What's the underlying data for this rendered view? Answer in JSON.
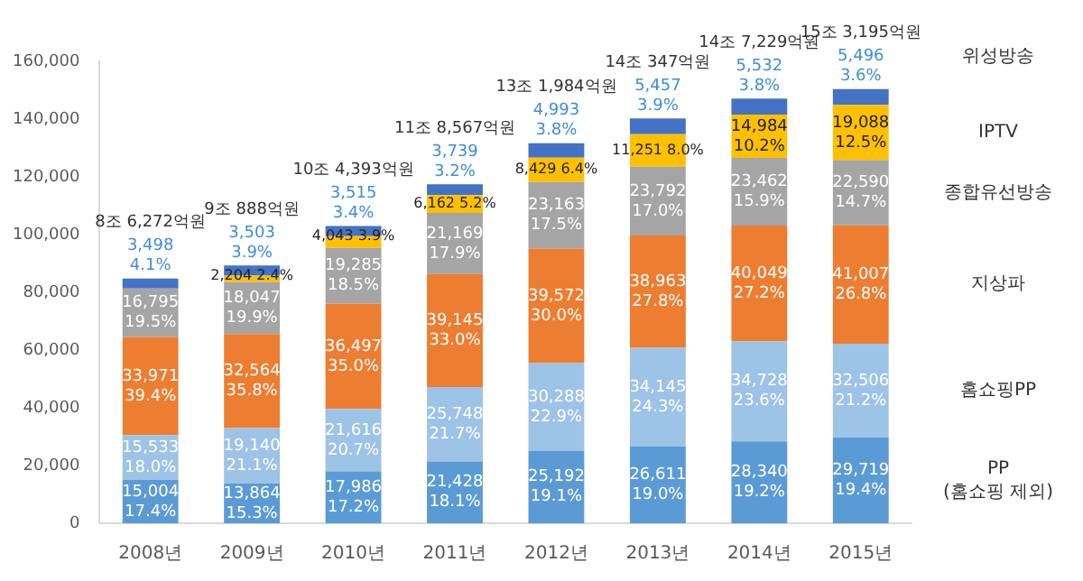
{
  "chart_data": {
    "type": "bar",
    "stacked": true,
    "categories": [
      "2008년",
      "2009년",
      "2010년",
      "2011년",
      "2012년",
      "2013년",
      "2014년",
      "2015년"
    ],
    "ylim": [
      0,
      160000
    ],
    "yticks": [
      {
        "value": 0,
        "label": "0"
      },
      {
        "value": 20000,
        "label": "20,000"
      },
      {
        "value": 40000,
        "label": "40,000"
      },
      {
        "value": 60000,
        "label": "60,000"
      },
      {
        "value": 80000,
        "label": "80,000"
      },
      {
        "value": 100000,
        "label": "100,000"
      },
      {
        "value": 120000,
        "label": "120,000"
      },
      {
        "value": 140000,
        "label": "140,000"
      },
      {
        "value": 160000,
        "label": "160,000"
      }
    ],
    "grid": false,
    "legend": false,
    "series": [
      {
        "name": "PP\n(홈쇼핑 제외)",
        "color": "#5b9bd5",
        "values": [
          15004,
          13864,
          17986,
          21428,
          25192,
          26611,
          28340,
          29719
        ],
        "value_labels": [
          "15,004\n17.4%",
          "13,864\n15.3%",
          "17,986\n17.2%",
          "21,428\n18.1%",
          "25,192\n19.1%",
          "26,611\n19.0%",
          "28,340\n19.2%",
          "29,719\n19.4%"
        ]
      },
      {
        "name": "홈쇼핑PP",
        "color": "#9dc3e6",
        "values": [
          15533,
          19140,
          21616,
          25748,
          30288,
          34145,
          34728,
          32506
        ],
        "value_labels": [
          "15,533\n18.0%",
          "19,140\n21.1%",
          "21,616\n20.7%",
          "25,748\n21.7%",
          "30,288\n22.9%",
          "34,145\n24.3%",
          "34,728\n23.6%",
          "32,506\n21.2%"
        ]
      },
      {
        "name": "지상파",
        "color": "#ed7d31",
        "values": [
          33971,
          32564,
          36497,
          39145,
          39572,
          38963,
          40049,
          41007
        ],
        "value_labels": [
          "33,971\n39.4%",
          "32,564\n35.8%",
          "36,497\n35.0%",
          "39,145\n33.0%",
          "39,572\n30.0%",
          "38,963\n27.8%",
          "40,049\n27.2%",
          "41,007\n26.8%"
        ]
      },
      {
        "name": "종합유선방송",
        "color": "#a5a5a5",
        "values": [
          16795,
          18047,
          19285,
          21169,
          23163,
          23792,
          23462,
          22590
        ],
        "value_labels": [
          "16,795\n19.5%",
          "18,047\n19.9%",
          "19,285\n18.5%",
          "21,169\n17.9%",
          "23,163\n17.5%",
          "23,792\n17.0%",
          "23,462\n15.9%",
          "22,590\n14.7%"
        ]
      },
      {
        "name": "IPTV",
        "color": "#ffc000",
        "values": [
          null,
          2204,
          4043,
          6162,
          8429,
          11251,
          14984,
          19088
        ],
        "value_labels": [
          null,
          "2,204\n2.4%",
          "4,043\n3.9%",
          "6,162\n5.2%",
          "8,429\n6.4%",
          "11,251\n8.0%",
          "14,984\n10.2%",
          "19,088\n12.5%"
        ]
      },
      {
        "name": "위성방송",
        "color": "#4472c4",
        "values": [
          3498,
          3503,
          3515,
          3739,
          4993,
          5457,
          5532,
          5496
        ],
        "value_labels": [
          "3,498\n4.1%",
          "3,503\n3.9%",
          "3,515\n3.4%",
          "3,739\n3.2%",
          "4,993\n3.8%",
          "5,457\n3.9%",
          "5,532\n3.8%",
          "5,496\n3.6%"
        ]
      }
    ],
    "totals": [
      "8조 6,272억원",
      "9조 888억원",
      "10조 4,393억원",
      "11조 8,567억원",
      "13조 1,984억원",
      "14조 347억원",
      "14조 7,229억원",
      "15조 3,195억원"
    ]
  }
}
